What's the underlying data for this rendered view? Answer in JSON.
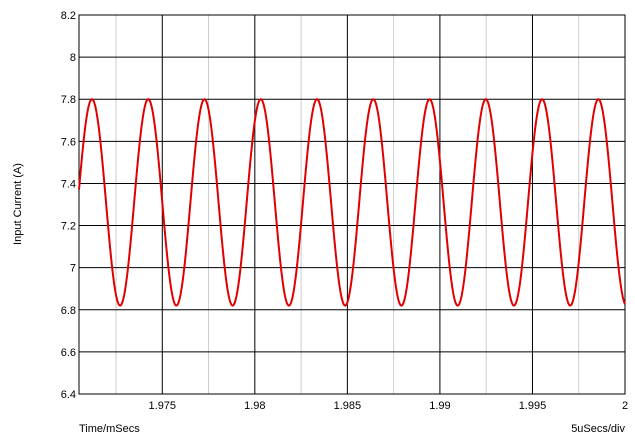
{
  "chart_data": {
    "type": "line",
    "ylabel": "Input Current (A)",
    "xlabel": "Time/mSecs",
    "scale_note": "5uSecs/div",
    "xlim": [
      1.9705,
      2.0
    ],
    "ylim": [
      6.4,
      8.2
    ],
    "x_ticks": [
      1.975,
      1.98,
      1.985,
      1.99,
      1.995,
      2.0
    ],
    "x_tick_labels": [
      "1.975",
      "1.98",
      "1.985",
      "1.99",
      "1.995",
      "2"
    ],
    "x_minor_ticks": [
      1.9725,
      1.9775,
      1.9825,
      1.9875,
      1.9925,
      1.9975
    ],
    "y_ticks": [
      6.4,
      6.6,
      6.8,
      7.0,
      7.2,
      7.4,
      7.6,
      7.8,
      8.0,
      8.2
    ],
    "y_tick_labels": [
      "6.4",
      "6.6",
      "6.8",
      "7",
      "7.2",
      "7.4",
      "7.6",
      "7.8",
      "8",
      "8.2"
    ],
    "grid": true,
    "series": [
      {
        "color": "#e00000",
        "waveform": "sine",
        "mean": 7.31,
        "amplitude": 0.49,
        "period": 0.00304,
        "first_peak_x": 1.9712,
        "x_start": 1.9705,
        "x_end": 2.0
      }
    ]
  }
}
